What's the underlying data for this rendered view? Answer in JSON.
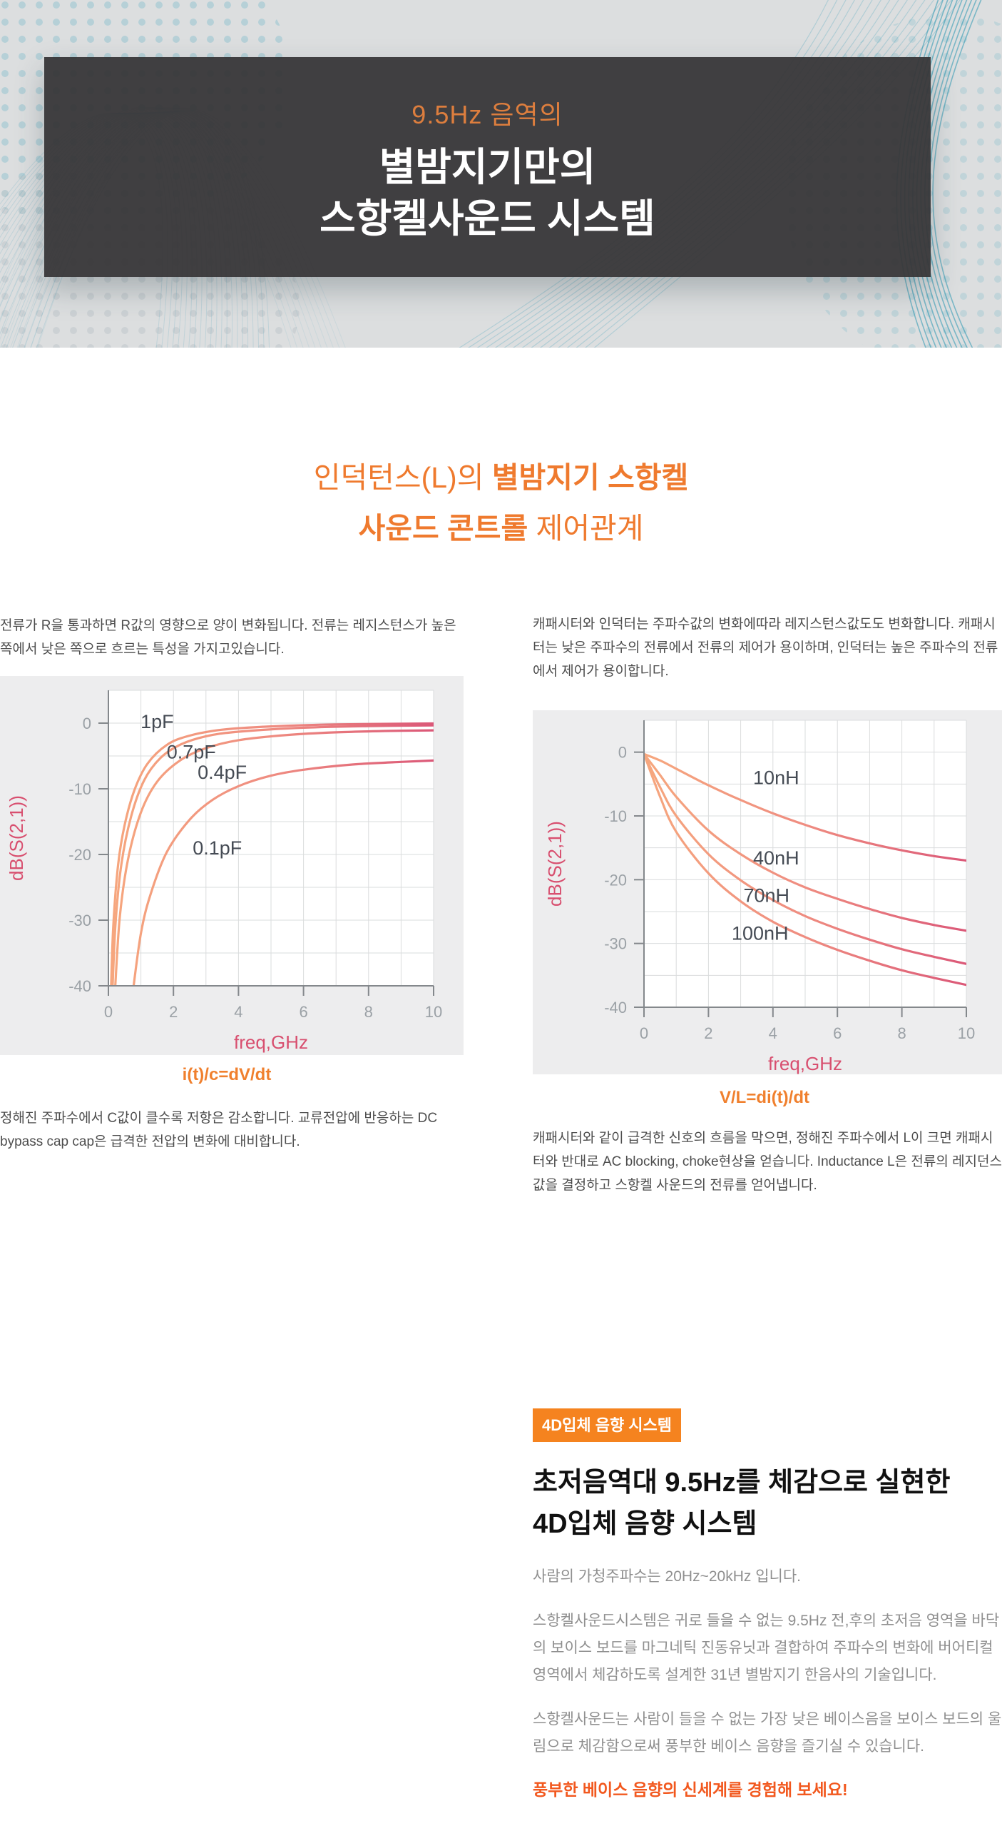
{
  "hero": {
    "subtitle": "9.5Hz 음역의",
    "title_line1": "별밤지기만의",
    "title_line2": "스항켈사운드 시스템",
    "colors": {
      "box_bg": "#373638",
      "subtitle": "#dd7e3e",
      "wave_teal": "#2f9ab8",
      "background": "#dcdedf"
    }
  },
  "section_title": {
    "line1_normal": "인덕턴스(L)의 ",
    "line1_bold": "별밤지기 스항켈",
    "line2_bold": "사운드 콘트롤",
    "line2_normal": " 제어관계",
    "color": "#ef7a2e"
  },
  "left_column": {
    "intro": "전류가 R을 통과하면 R값의 영향으로 양이 변화됩니다. 전류는 레지스턴스가 높은 쪽에서 낮은 쪽으로 흐르는 특성을 가지고있습니다.",
    "caption": "i(t)/c=dV/dt",
    "outro": "정해진 주파수에서 C값이 클수록 저항은 감소합니다. 교류전압에 반응하는 DC bypass cap cap은 급격한 전압의 변화에 대비합니다."
  },
  "right_column": {
    "intro": "캐패시터와 인덕터는 주파수값의 변화에따라 레지스턴스값도도 변화합니다. 캐패시터는 낮은 주파수의 전류에서 전류의 제어가 용이하며, 인덕터는 높은 주파수의 전류에서 제어가 용이합니다.",
    "caption": "V/L=di(t)/dt",
    "outro": "캐패시터와 같이 급격한 신호의 흐름을 막으면, 정해진 주파수에서 L이 크면 캐패시터와 반대로 AC blocking, choke현상을 얻습니다. Inductance L은 전류의 레지던스 값을 결정하고 스항켈 사운드의 전류를 얻어냅니다."
  },
  "feature": {
    "badge": "4D입체 음향 시스템",
    "heading_line1": "초저음역대 9.5Hz를 체감으로 실현한",
    "heading_line2": "4D입체 음향 시스템",
    "paragraphs": [
      "사람의 가청주파수는 20Hz~20kHz 입니다.",
      "스항켈사운드시스템은 귀로 들을 수 없는 9.5Hz 전,후의 초저음 영역을 바닥의 보이스 보드를 마그네틱 진동유닛과 결합하여 주파수의 변화에 버어티컬 영역에서 체감하도록 설계한 31년 별밤지기 한음사의 기술입니다.",
      "스항켈사운드는 사람이 들을 수 없는 가장 낮은 베이스음을 보이스 보드의 울림으로 체감함으로써 풍부한 베이스 음향을 즐기실 수 있습니다."
    ],
    "cta": "풍부한 베이스 음향의 신세계를 경험해 보세요!",
    "colors": {
      "badge_bg": "#f5831f",
      "cta": "#f2581e"
    }
  },
  "chart_style": {
    "panel_bg": "#ededee",
    "plot_bg": "#ffffff",
    "grid": "#dadcdd",
    "axis": "#84888c",
    "tick_label": "#9ba1a6",
    "axis_title": "#d84f6f",
    "series_label": "#454b54"
  },
  "chart_data": [
    {
      "type": "line",
      "id": "capacitor-sweep",
      "title": "",
      "xlabel": "freq,GHz",
      "ylabel": "dB(S(2,1))",
      "xlim": [
        0,
        10
      ],
      "ylim": [
        -40,
        5
      ],
      "xticks": [
        0,
        2,
        4,
        6,
        8,
        10
      ],
      "yticks": [
        0,
        -10,
        -20,
        -30,
        -40
      ],
      "grid": {
        "x_step": 1,
        "y_step": 5
      },
      "legend_position": "inline-labels",
      "stroke_gradient": [
        "#f6a77e",
        "#ef8c80",
        "#db5878"
      ],
      "series": [
        {
          "name": "1pF",
          "label_at": [
            1.5,
            0.2
          ],
          "points": [
            [
              0.08,
              -41
            ],
            [
              0.15,
              -31
            ],
            [
              0.3,
              -21.5
            ],
            [
              0.5,
              -15.5
            ],
            [
              0.8,
              -10.2
            ],
            [
              1.2,
              -6.2
            ],
            [
              1.8,
              -3.3
            ],
            [
              2.5,
              -1.9
            ],
            [
              3.5,
              -1.0
            ],
            [
              5,
              -0.5
            ],
            [
              7,
              -0.2
            ],
            [
              10,
              -0.05
            ]
          ]
        },
        {
          "name": "0.7pF",
          "label_at": [
            2.55,
            -4.4
          ],
          "points": [
            [
              0.12,
              -41
            ],
            [
              0.22,
              -30.5
            ],
            [
              0.4,
              -21.5
            ],
            [
              0.7,
              -14.2
            ],
            [
              1.1,
              -8.7
            ],
            [
              1.6,
              -5.3
            ],
            [
              2.2,
              -3.3
            ],
            [
              3,
              -2.0
            ],
            [
              4,
              -1.3
            ],
            [
              6,
              -0.7
            ],
            [
              8,
              -0.45
            ],
            [
              10,
              -0.35
            ]
          ]
        },
        {
          "name": "0.4pF",
          "label_at": [
            3.5,
            -7.5
          ],
          "points": [
            [
              0.2,
              -41
            ],
            [
              0.35,
              -29.5
            ],
            [
              0.6,
              -20.8
            ],
            [
              1,
              -13.6
            ],
            [
              1.5,
              -8.9
            ],
            [
              2.2,
              -5.7
            ],
            [
              3,
              -3.8
            ],
            [
              4,
              -2.6
            ],
            [
              5.5,
              -1.8
            ],
            [
              7,
              -1.4
            ],
            [
              8.5,
              -1.2
            ],
            [
              10,
              -1.1
            ]
          ]
        },
        {
          "name": "0.1pF",
          "label_at": [
            3.35,
            -19
          ],
          "points": [
            [
              0.75,
              -41
            ],
            [
              1,
              -32
            ],
            [
              1.3,
              -26
            ],
            [
              1.8,
              -19.6
            ],
            [
              2.5,
              -14.7
            ],
            [
              3.2,
              -11.7
            ],
            [
              4,
              -9.6
            ],
            [
              5,
              -8.0
            ],
            [
              6,
              -7.1
            ],
            [
              7.5,
              -6.3
            ],
            [
              9,
              -5.9
            ],
            [
              10,
              -5.7
            ]
          ]
        }
      ]
    },
    {
      "type": "line",
      "id": "inductor-sweep",
      "title": "",
      "xlabel": "freq,GHz",
      "ylabel": "dB(S(2,1))",
      "xlim": [
        0,
        10
      ],
      "ylim": [
        -40,
        5
      ],
      "xticks": [
        0,
        2,
        4,
        6,
        8,
        10
      ],
      "yticks": [
        0,
        -10,
        -20,
        -30,
        -40
      ],
      "grid": {
        "x_step": 1,
        "y_step": 5
      },
      "legend_position": "inline-labels",
      "stroke_gradient": [
        "#f6a77e",
        "#ef8c80",
        "#db5878"
      ],
      "series": [
        {
          "name": "10nH",
          "label_at": [
            4.1,
            -4.0
          ],
          "points": [
            [
              0,
              -0.3
            ],
            [
              0.5,
              -1.3
            ],
            [
              1,
              -2.6
            ],
            [
              2,
              -5.2
            ],
            [
              3,
              -7.5
            ],
            [
              4,
              -9.6
            ],
            [
              5,
              -11.4
            ],
            [
              6,
              -13.0
            ],
            [
              7,
              -14.3
            ],
            [
              8,
              -15.4
            ],
            [
              9,
              -16.3
            ],
            [
              10,
              -17.0
            ]
          ]
        },
        {
          "name": "40nH",
          "label_at": [
            4.1,
            -16.6
          ],
          "points": [
            [
              0,
              -0.3
            ],
            [
              0.5,
              -3.6
            ],
            [
              1,
              -7.0
            ],
            [
              2,
              -12.3
            ],
            [
              3,
              -16.0
            ],
            [
              4,
              -18.9
            ],
            [
              5,
              -21.2
            ],
            [
              6,
              -23.0
            ],
            [
              7,
              -24.6
            ],
            [
              8,
              -26.0
            ],
            [
              9,
              -27.1
            ],
            [
              10,
              -28.0
            ]
          ]
        },
        {
          "name": "70nH",
          "label_at": [
            3.8,
            -22.5
          ],
          "points": [
            [
              0,
              -0.3
            ],
            [
              0.5,
              -5.5
            ],
            [
              1,
              -10.0
            ],
            [
              2,
              -16.0
            ],
            [
              3,
              -20.1
            ],
            [
              4,
              -23.2
            ],
            [
              5,
              -25.7
            ],
            [
              6,
              -27.7
            ],
            [
              7,
              -29.4
            ],
            [
              8,
              -30.9
            ],
            [
              9,
              -32.1
            ],
            [
              10,
              -33.2
            ]
          ]
        },
        {
          "name": "100nH",
          "label_at": [
            3.6,
            -28.4
          ],
          "points": [
            [
              0,
              -0.3
            ],
            [
              0.5,
              -7.0
            ],
            [
              1,
              -12.5
            ],
            [
              2,
              -19.0
            ],
            [
              3,
              -23.4
            ],
            [
              4,
              -26.6
            ],
            [
              5,
              -29.0
            ],
            [
              6,
              -31.0
            ],
            [
              7,
              -32.7
            ],
            [
              8,
              -34.2
            ],
            [
              9,
              -35.4
            ],
            [
              10,
              -36.5
            ]
          ]
        }
      ]
    }
  ]
}
